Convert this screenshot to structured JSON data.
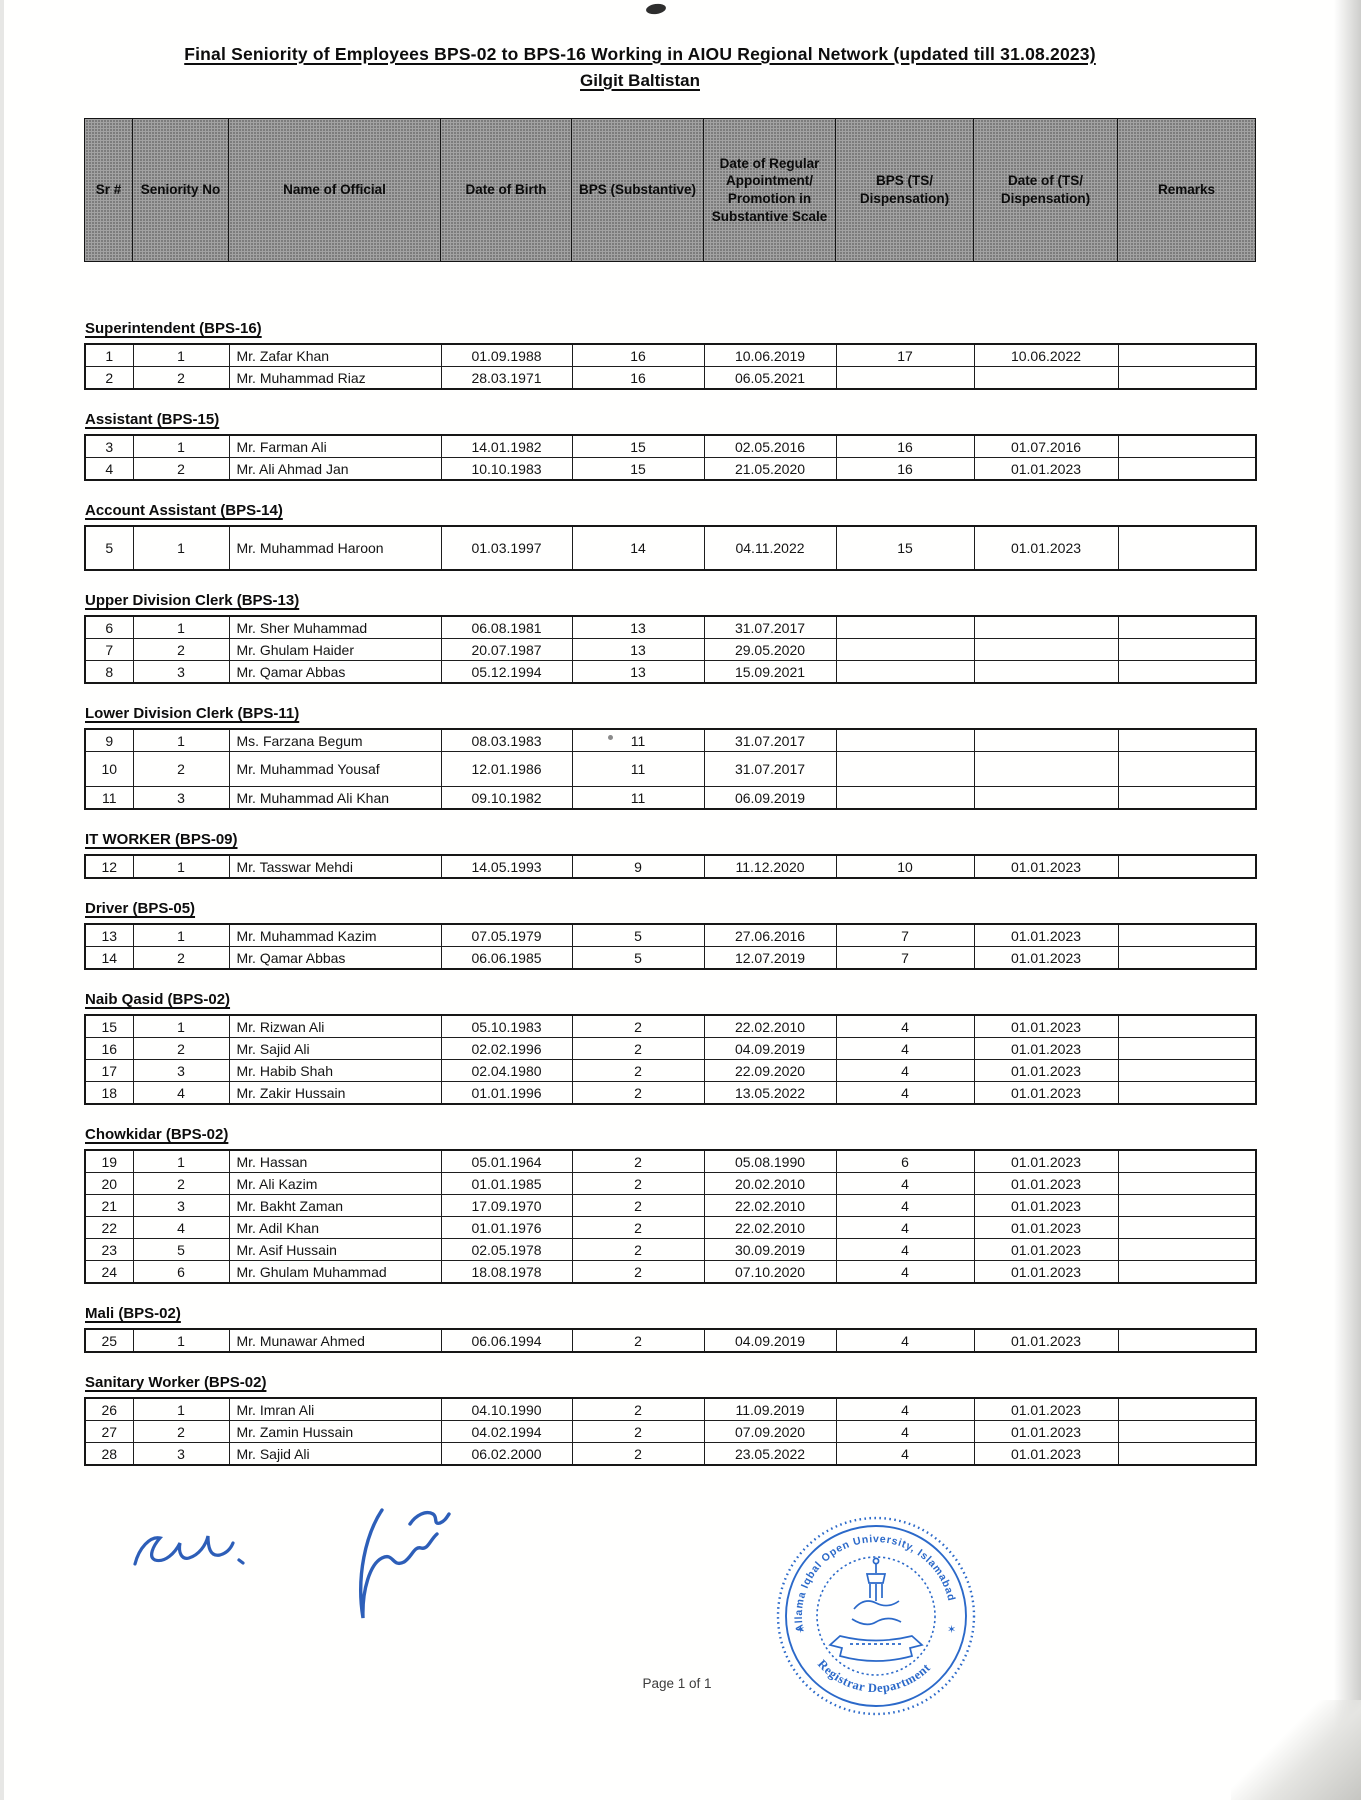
{
  "page": {
    "title_line1": "Final Seniority of Employees BPS-02 to BPS-16 Working in AIOU Regional Network (updated till 31.08.2023)",
    "title_line2": "Gilgit Baltistan",
    "footer": "Page 1 of 1"
  },
  "header": {
    "columns": [
      "Sr #",
      "Seniority No",
      "Name of Official",
      "Date of Birth",
      "BPS (Substantive)",
      "Date of Regular Appointment/ Promotion in Substantive Scale",
      "BPS (TS/ Dispensation)",
      "Date of (TS/ Dispensation)",
      "Remarks"
    ]
  },
  "sections": [
    {
      "title": "Superintendent (BPS-16)",
      "rows": [
        [
          "1",
          "1",
          "Mr. Zafar Khan",
          "01.09.1988",
          "16",
          "10.06.2019",
          "17",
          "10.06.2022",
          ""
        ],
        [
          "2",
          "2",
          "Mr. Muhammad Riaz",
          "28.03.1971",
          "16",
          "06.05.2021",
          "",
          "",
          ""
        ]
      ]
    },
    {
      "title": "Assistant (BPS-15)",
      "rows": [
        [
          "3",
          "1",
          "Mr. Farman Ali",
          "14.01.1982",
          "15",
          "02.05.2016",
          "16",
          "01.07.2016",
          ""
        ],
        [
          "4",
          "2",
          "Mr. Ali Ahmad Jan",
          "10.10.1983",
          "15",
          "21.05.2020",
          "16",
          "01.01.2023",
          ""
        ]
      ]
    },
    {
      "title": "Account Assistant (BPS-14)",
      "rows": [
        [
          "5",
          "1",
          "Mr. Muhammad Haroon",
          "01.03.1997",
          "14",
          "04.11.2022",
          "15",
          "01.01.2023",
          ""
        ]
      ]
    },
    {
      "title": "Upper Division Clerk (BPS-13)",
      "rows": [
        [
          "6",
          "1",
          "Mr. Sher Muhammad",
          "06.08.1981",
          "13",
          "31.07.2017",
          "",
          "",
          ""
        ],
        [
          "7",
          "2",
          "Mr. Ghulam Haider",
          "20.07.1987",
          "13",
          "29.05.2020",
          "",
          "",
          ""
        ],
        [
          "8",
          "3",
          "Mr. Qamar Abbas",
          "05.12.1994",
          "13",
          "15.09.2021",
          "",
          "",
          ""
        ]
      ]
    },
    {
      "title": "Lower Division Clerk (BPS-11)",
      "rows": [
        [
          "9",
          "1",
          "Ms. Farzana Begum",
          "08.03.1983",
          "11",
          "31.07.2017",
          "",
          "",
          ""
        ],
        [
          "10",
          "2",
          "Mr. Muhammad Yousaf",
          "12.01.1986",
          "11",
          "31.07.2017",
          "",
          "",
          ""
        ],
        [
          "11",
          "3",
          "Mr. Muhammad Ali Khan",
          "09.10.1982",
          "11",
          "06.09.2019",
          "",
          "",
          ""
        ]
      ]
    },
    {
      "title": "IT WORKER (BPS-09)",
      "rows": [
        [
          "12",
          "1",
          "Mr. Tasswar Mehdi",
          "14.05.1993",
          "9",
          "11.12.2020",
          "10",
          "01.01.2023",
          ""
        ]
      ]
    },
    {
      "title": "Driver (BPS-05)",
      "rows": [
        [
          "13",
          "1",
          "Mr. Muhammad Kazim",
          "07.05.1979",
          "5",
          "27.06.2016",
          "7",
          "01.01.2023",
          ""
        ],
        [
          "14",
          "2",
          "Mr. Qamar Abbas",
          "06.06.1985",
          "5",
          "12.07.2019",
          "7",
          "01.01.2023",
          ""
        ]
      ]
    },
    {
      "title": "Naib Qasid (BPS-02)",
      "rows": [
        [
          "15",
          "1",
          "Mr. Rizwan Ali",
          "05.10.1983",
          "2",
          "22.02.2010",
          "4",
          "01.01.2023",
          ""
        ],
        [
          "16",
          "2",
          "Mr. Sajid Ali",
          "02.02.1996",
          "2",
          "04.09.2019",
          "4",
          "01.01.2023",
          ""
        ],
        [
          "17",
          "3",
          "Mr. Habib Shah",
          "02.04.1980",
          "2",
          "22.09.2020",
          "4",
          "01.01.2023",
          ""
        ],
        [
          "18",
          "4",
          "Mr. Zakir Hussain",
          "01.01.1996",
          "2",
          "13.05.2022",
          "4",
          "01.01.2023",
          ""
        ]
      ]
    },
    {
      "title": "Chowkidar (BPS-02)",
      "rows": [
        [
          "19",
          "1",
          "Mr. Hassan",
          "05.01.1964",
          "2",
          "05.08.1990",
          "6",
          "01.01.2023",
          ""
        ],
        [
          "20",
          "2",
          "Mr. Ali Kazim",
          "01.01.1985",
          "2",
          "20.02.2010",
          "4",
          "01.01.2023",
          ""
        ],
        [
          "21",
          "3",
          "Mr. Bakht Zaman",
          "17.09.1970",
          "2",
          "22.02.2010",
          "4",
          "01.01.2023",
          ""
        ],
        [
          "22",
          "4",
          "Mr. Adil Khan",
          "01.01.1976",
          "2",
          "22.02.2010",
          "4",
          "01.01.2023",
          ""
        ],
        [
          "23",
          "5",
          "Mr. Asif Hussain",
          "02.05.1978",
          "2",
          "30.09.2019",
          "4",
          "01.01.2023",
          ""
        ],
        [
          "24",
          "6",
          "Mr. Ghulam Muhammad",
          "18.08.1978",
          "2",
          "07.10.2020",
          "4",
          "01.01.2023",
          ""
        ]
      ]
    },
    {
      "title": "Mali (BPS-02)",
      "rows": [
        [
          "25",
          "1",
          "Mr. Munawar Ahmed",
          "06.06.1994",
          "2",
          "04.09.2019",
          "4",
          "01.01.2023",
          ""
        ]
      ]
    },
    {
      "title": "Sanitary Worker (BPS-02)",
      "rows": [
        [
          "26",
          "1",
          "Mr. Imran Ali",
          "04.10.1990",
          "2",
          "11.09.2019",
          "4",
          "01.01.2023",
          ""
        ],
        [
          "27",
          "2",
          "Mr. Zamin Hussain",
          "04.02.1994",
          "2",
          "07.09.2020",
          "4",
          "01.01.2023",
          ""
        ],
        [
          "28",
          "3",
          "Mr. Sajid Ali",
          "06.02.2000",
          "2",
          "23.05.2022",
          "4",
          "01.01.2023",
          ""
        ]
      ]
    }
  ],
  "stamp": {
    "arc_top": "Allama Iqbal Open University, Islamabad",
    "arc_bottom": "Registrar Department",
    "star": "✶"
  },
  "colors": {
    "stamp_blue": "#1b5ec6",
    "signature_blue": "#2256b5",
    "header_gray": "#a2a2a2",
    "border_black": "#1e1e1e"
  }
}
